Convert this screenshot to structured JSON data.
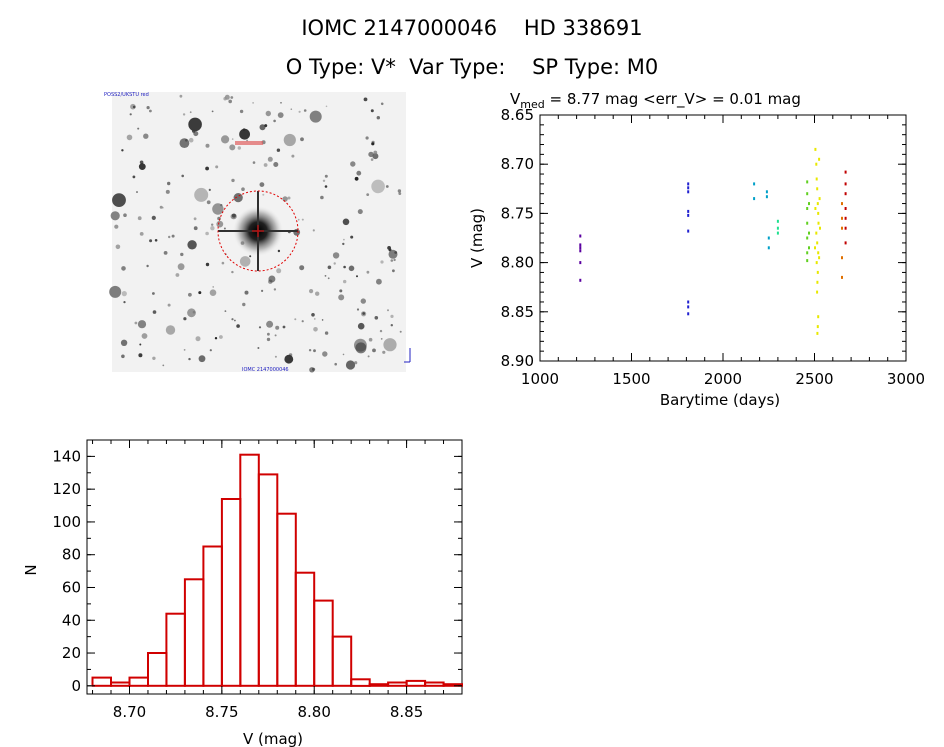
{
  "header": {
    "title": "IOMC 2147000046    HD 338691",
    "subtitle": "O Type: V*  Var Type:    SP Type: M0"
  },
  "image_panel": {
    "caption_top": "POSS2/UKSTU red",
    "caption_bottom": "IOMC 2147000046"
  },
  "chart_data": [
    {
      "type": "scatter",
      "title_parts": {
        "v": "V",
        "sub": "med",
        "rest": " = 8.77 mag <err_V> = 0.01 mag"
      },
      "xlabel": "Barytime (days)",
      "ylabel": "V (mag)",
      "xlim": [
        1000,
        3000
      ],
      "ylim": [
        8.9,
        8.65
      ],
      "y_inverted": true,
      "xticks": [
        1000,
        1500,
        2000,
        2500,
        3000
      ],
      "yticks": [
        8.65,
        8.7,
        8.75,
        8.8,
        8.85,
        8.9
      ],
      "series": [
        {
          "color": "#5a00a0",
          "points": [
            [
              1220,
              8.773
            ],
            [
              1220,
              8.782
            ],
            [
              1220,
              8.785
            ],
            [
              1220,
              8.788
            ],
            [
              1220,
              8.8
            ],
            [
              1220,
              8.818
            ]
          ]
        },
        {
          "color": "#2020d0",
          "points": [
            [
              1810,
              8.72
            ],
            [
              1810,
              8.724
            ],
            [
              1810,
              8.728
            ],
            [
              1810,
              8.748
            ],
            [
              1810,
              8.752
            ],
            [
              1810,
              8.768
            ],
            [
              1810,
              8.84
            ],
            [
              1810,
              8.845
            ],
            [
              1810,
              8.852
            ]
          ]
        },
        {
          "color": "#00a0c8",
          "points": [
            [
              2170,
              8.72
            ],
            [
              2170,
              8.735
            ],
            [
              2240,
              8.728
            ],
            [
              2240,
              8.733
            ],
            [
              2250,
              8.775
            ],
            [
              2250,
              8.785
            ]
          ]
        },
        {
          "color": "#20e090",
          "points": [
            [
              2300,
              8.758
            ],
            [
              2300,
              8.765
            ],
            [
              2300,
              8.77
            ]
          ]
        },
        {
          "color": "#60d020",
          "points": [
            [
              2460,
              8.718
            ],
            [
              2460,
              8.73
            ],
            [
              2460,
              8.745
            ],
            [
              2460,
              8.76
            ],
            [
              2460,
              8.775
            ],
            [
              2460,
              8.79
            ],
            [
              2460,
              8.798
            ],
            [
              2470,
              8.74
            ],
            [
              2470,
              8.77
            ],
            [
              2470,
              8.785
            ]
          ]
        },
        {
          "color": "#e8e800",
          "points": [
            [
              2505,
              8.685
            ],
            [
              2510,
              8.7
            ],
            [
              2512,
              8.715
            ],
            [
              2515,
              8.725
            ],
            [
              2518,
              8.74
            ],
            [
              2520,
              8.75
            ],
            [
              2522,
              8.76
            ],
            [
              2510,
              8.77
            ],
            [
              2515,
              8.78
            ],
            [
              2520,
              8.79
            ],
            [
              2512,
              8.8
            ],
            [
              2518,
              8.81
            ],
            [
              2516,
              8.82
            ],
            [
              2514,
              8.83
            ],
            [
              2520,
              8.855
            ],
            [
              2518,
              8.865
            ],
            [
              2516,
              8.872
            ],
            [
              2525,
              8.695
            ],
            [
              2528,
              8.735
            ],
            [
              2530,
              8.765
            ],
            [
              2525,
              8.795
            ],
            [
              2505,
              8.745
            ],
            [
              2503,
              8.785
            ]
          ]
        },
        {
          "color": "#e07000",
          "points": [
            [
              2650,
              8.74
            ],
            [
              2650,
              8.755
            ],
            [
              2650,
              8.765
            ],
            [
              2650,
              8.795
            ],
            [
              2650,
              8.815
            ]
          ]
        },
        {
          "color": "#c00000",
          "points": [
            [
              2670,
              8.708
            ],
            [
              2670,
              8.72
            ],
            [
              2670,
              8.73
            ],
            [
              2670,
              8.745
            ],
            [
              2670,
              8.755
            ],
            [
              2670,
              8.765
            ],
            [
              2670,
              8.78
            ]
          ]
        }
      ]
    },
    {
      "type": "bar",
      "subtype": "histogram",
      "xlabel": "V (mag)",
      "ylabel": "N",
      "xlim": [
        8.677,
        8.88
      ],
      "ylim": [
        -5,
        150
      ],
      "xticks": [
        8.7,
        8.75,
        8.8,
        8.85
      ],
      "yticks": [
        0,
        20,
        40,
        60,
        80,
        100,
        120,
        140
      ],
      "bin_width": 0.01,
      "bin_start": 8.68,
      "values": [
        5,
        2,
        5,
        20,
        44,
        65,
        85,
        114,
        141,
        129,
        105,
        69,
        52,
        30,
        4,
        1,
        2,
        3,
        2,
        1
      ],
      "bar_color": "#d00000"
    }
  ]
}
